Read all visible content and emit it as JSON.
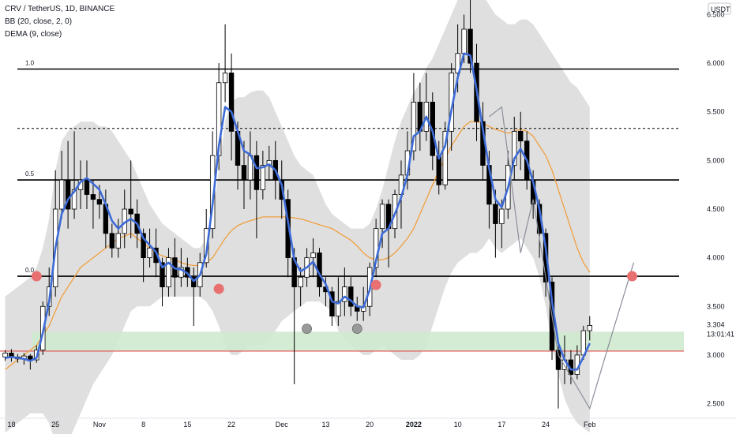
{
  "legend": {
    "symbol": "CRV / TetherUS, 1D, BINANCE",
    "bb": "BB (20, close, 2, 0)",
    "dema": "DEMA (9, close)"
  },
  "currency": "USDT",
  "last_price": "3.304",
  "countdown": "13:01:41",
  "colors": {
    "up_fill": "#ffffff",
    "down_fill": "#000000",
    "candle_stroke": "#000000",
    "dema": "#3d6bd6",
    "bb_basis": "#f0a040",
    "bb_band": "#d9d9d9",
    "support_zone": "#cfe9cf",
    "red_line": "#e05050",
    "marker_red": "#e87070",
    "marker_gray": "#999999"
  },
  "chart_data": {
    "type": "candlestick",
    "ylim": [
      2.35,
      6.65
    ],
    "y_ticks": [
      2.5,
      3.0,
      3.5,
      4.0,
      4.5,
      5.0,
      5.5,
      6.0,
      6.5
    ],
    "y_tick_labels": [
      "2.500",
      "3.000",
      "3.500",
      "4.000",
      "4.500",
      "5.000",
      "5.500",
      "6.000",
      "6.500"
    ],
    "x_ticks": [
      {
        "i": 1,
        "label": "18"
      },
      {
        "i": 8,
        "label": "25"
      },
      {
        "i": 15,
        "label": "Nov"
      },
      {
        "i": 22,
        "label": "8"
      },
      {
        "i": 29,
        "label": "15"
      },
      {
        "i": 36,
        "label": "22"
      },
      {
        "i": 44,
        "label": "Dec"
      },
      {
        "i": 51,
        "label": "13"
      },
      {
        "i": 58,
        "label": "20"
      },
      {
        "i": 65,
        "label": "2022"
      },
      {
        "i": 72,
        "label": "10"
      },
      {
        "i": 79,
        "label": "17"
      },
      {
        "i": 86,
        "label": "24"
      },
      {
        "i": 93,
        "label": "Feb"
      }
    ],
    "candles": [
      [
        2.98,
        3.02,
        2.94,
        3.05
      ],
      [
        3.02,
        2.98,
        2.93,
        3.06
      ],
      [
        2.98,
        2.96,
        2.92,
        3.01
      ],
      [
        2.96,
        2.99,
        2.9,
        3.02
      ],
      [
        2.99,
        2.95,
        2.85,
        3.01
      ],
      [
        2.95,
        3.05,
        2.92,
        3.1
      ],
      [
        3.05,
        3.5,
        3.0,
        3.55
      ],
      [
        3.5,
        3.7,
        3.4,
        3.9
      ],
      [
        3.7,
        4.5,
        3.6,
        4.9
      ],
      [
        4.5,
        4.8,
        4.4,
        5.1
      ],
      [
        4.8,
        4.5,
        4.3,
        5.2
      ],
      [
        4.5,
        4.7,
        4.4,
        5.3
      ],
      [
        4.7,
        4.8,
        4.5,
        5.0
      ],
      [
        4.8,
        4.65,
        4.5,
        5.0
      ],
      [
        4.65,
        4.6,
        4.3,
        4.8
      ],
      [
        4.6,
        4.55,
        4.4,
        4.75
      ],
      [
        4.55,
        4.25,
        4.1,
        4.7
      ],
      [
        4.25,
        4.1,
        4.0,
        4.35
      ],
      [
        4.1,
        4.25,
        4.0,
        4.4
      ],
      [
        4.25,
        4.5,
        4.1,
        4.7
      ],
      [
        4.5,
        4.45,
        4.2,
        5.0
      ],
      [
        4.45,
        4.25,
        4.1,
        4.6
      ],
      [
        4.25,
        4.0,
        3.75,
        4.3
      ],
      [
        4.0,
        4.1,
        3.9,
        4.3
      ],
      [
        4.1,
        3.95,
        3.8,
        4.3
      ],
      [
        3.95,
        3.7,
        3.5,
        4.0
      ],
      [
        3.7,
        4.0,
        3.6,
        4.1
      ],
      [
        4.0,
        3.8,
        3.6,
        4.2
      ],
      [
        3.8,
        3.9,
        3.7,
        4.1
      ],
      [
        3.9,
        3.8,
        3.7,
        4.0
      ],
      [
        3.8,
        3.7,
        3.3,
        3.9
      ],
      [
        3.7,
        3.95,
        3.6,
        4.05
      ],
      [
        3.95,
        4.3,
        3.9,
        4.5
      ],
      [
        4.3,
        5.05,
        4.2,
        5.3
      ],
      [
        5.05,
        5.8,
        4.9,
        6.0
      ],
      [
        5.8,
        5.9,
        5.6,
        6.4
      ],
      [
        5.9,
        5.3,
        5.0,
        6.1
      ],
      [
        5.3,
        4.95,
        4.7,
        5.4
      ],
      [
        4.95,
        4.8,
        4.5,
        5.2
      ],
      [
        4.8,
        5.05,
        4.6,
        5.3
      ],
      [
        5.05,
        4.7,
        4.2,
        5.2
      ],
      [
        4.7,
        4.95,
        4.6,
        5.1
      ],
      [
        4.95,
        5.0,
        4.8,
        5.15
      ],
      [
        5.0,
        4.8,
        4.6,
        5.2
      ],
      [
        4.8,
        4.6,
        4.4,
        5.0
      ],
      [
        4.6,
        4.0,
        3.8,
        4.7
      ],
      [
        4.0,
        3.7,
        2.7,
        4.1
      ],
      [
        3.7,
        3.8,
        3.5,
        3.9
      ],
      [
        3.8,
        4.0,
        3.7,
        4.1
      ],
      [
        4.0,
        4.05,
        3.8,
        4.2
      ],
      [
        4.05,
        3.7,
        3.6,
        4.1
      ],
      [
        3.7,
        3.65,
        3.5,
        3.8
      ],
      [
        3.65,
        3.4,
        3.3,
        3.7
      ],
      [
        3.4,
        3.55,
        3.3,
        3.8
      ],
      [
        3.55,
        3.7,
        3.4,
        3.9
      ],
      [
        3.7,
        3.5,
        3.4,
        3.8
      ],
      [
        3.5,
        3.45,
        3.35,
        3.6
      ],
      [
        3.45,
        3.5,
        3.35,
        3.7
      ],
      [
        3.5,
        3.9,
        3.4,
        3.95
      ],
      [
        3.9,
        4.3,
        3.8,
        4.4
      ],
      [
        4.3,
        4.55,
        4.1,
        4.6
      ],
      [
        4.55,
        4.3,
        3.9,
        4.6
      ],
      [
        4.3,
        4.65,
        4.2,
        4.7
      ],
      [
        4.65,
        4.85,
        4.3,
        5.0
      ],
      [
        4.85,
        5.1,
        4.7,
        5.3
      ],
      [
        5.1,
        5.6,
        5.0,
        5.9
      ],
      [
        5.6,
        5.3,
        5.1,
        5.8
      ],
      [
        5.3,
        5.6,
        5.2,
        5.9
      ],
      [
        5.6,
        5.05,
        4.9,
        5.7
      ],
      [
        5.05,
        4.75,
        4.65,
        5.2
      ],
      [
        4.75,
        5.3,
        4.7,
        5.4
      ],
      [
        5.3,
        5.9,
        5.1,
        6.0
      ],
      [
        5.9,
        6.1,
        5.7,
        6.4
      ],
      [
        6.1,
        6.35,
        6.0,
        6.5
      ],
      [
        6.35,
        6.0,
        5.9,
        6.65
      ],
      [
        6.0,
        5.4,
        5.2,
        6.2
      ],
      [
        5.4,
        4.95,
        4.8,
        5.6
      ],
      [
        4.95,
        4.55,
        4.3,
        5.1
      ],
      [
        4.55,
        4.35,
        4.0,
        4.7
      ],
      [
        4.35,
        4.5,
        4.1,
        4.6
      ],
      [
        4.5,
        4.95,
        4.4,
        5.1
      ],
      [
        4.95,
        5.3,
        4.8,
        5.45
      ],
      [
        5.3,
        5.2,
        4.9,
        5.5
      ],
      [
        5.2,
        4.8,
        4.7,
        5.3
      ],
      [
        4.8,
        4.55,
        4.4,
        4.9
      ],
      [
        4.55,
        4.25,
        4.0,
        4.6
      ],
      [
        4.25,
        3.75,
        3.6,
        4.3
      ],
      [
        3.75,
        3.05,
        2.95,
        3.8
      ],
      [
        3.05,
        2.85,
        2.45,
        3.1
      ],
      [
        2.85,
        2.95,
        2.7,
        3.2
      ],
      [
        2.95,
        2.8,
        2.7,
        3.05
      ],
      [
        2.8,
        3.0,
        2.75,
        3.1
      ],
      [
        3.0,
        3.25,
        2.95,
        3.3
      ],
      [
        3.25,
        3.304,
        3.15,
        3.4
      ]
    ],
    "dema": [
      2.97,
      2.98,
      2.97,
      2.96,
      2.94,
      2.97,
      3.23,
      3.55,
      4.1,
      4.45,
      4.6,
      4.68,
      4.78,
      4.82,
      4.76,
      4.7,
      4.55,
      4.38,
      4.3,
      4.36,
      4.4,
      4.35,
      4.2,
      4.13,
      4.06,
      3.9,
      3.95,
      3.89,
      3.88,
      3.84,
      3.76,
      3.82,
      4.04,
      4.55,
      5.15,
      5.55,
      5.5,
      5.3,
      5.1,
      5.06,
      4.92,
      4.93,
      4.96,
      4.9,
      4.75,
      4.37,
      3.98,
      3.86,
      3.9,
      3.96,
      3.83,
      3.73,
      3.55,
      3.53,
      3.6,
      3.56,
      3.5,
      3.49,
      3.67,
      3.97,
      4.25,
      4.3,
      4.45,
      4.62,
      4.85,
      5.25,
      5.3,
      5.45,
      5.3,
      5.02,
      5.15,
      5.52,
      5.85,
      6.1,
      6.08,
      5.73,
      5.32,
      4.92,
      4.6,
      4.52,
      4.72,
      5.02,
      5.12,
      5.0,
      4.78,
      4.5,
      4.1,
      3.55,
      3.12,
      2.95,
      2.85,
      2.85,
      2.98,
      3.12
    ],
    "bb_basis": [
      2.85,
      2.9,
      2.95,
      3.0,
      3.05,
      3.1,
      3.2,
      3.3,
      3.45,
      3.6,
      3.7,
      3.8,
      3.9,
      3.95,
      4.0,
      4.05,
      4.1,
      4.15,
      4.2,
      4.22,
      4.25,
      4.2,
      4.15,
      4.1,
      4.05,
      4.02,
      4.0,
      3.98,
      3.95,
      3.93,
      3.92,
      3.92,
      3.95,
      4.0,
      4.1,
      4.2,
      4.28,
      4.33,
      4.36,
      4.38,
      4.4,
      4.42,
      4.42,
      4.42,
      4.42,
      4.42,
      4.41,
      4.4,
      4.38,
      4.36,
      4.34,
      4.32,
      4.3,
      4.26,
      4.22,
      4.18,
      4.12,
      4.05,
      4.0,
      3.98,
      3.98,
      4.0,
      4.05,
      4.12,
      4.2,
      4.3,
      4.45,
      4.6,
      4.75,
      4.9,
      5.02,
      5.15,
      5.25,
      5.35,
      5.4,
      5.4,
      5.38,
      5.35,
      5.32,
      5.3,
      5.28,
      5.3,
      5.32,
      5.3,
      5.25,
      5.15,
      5.05,
      4.9,
      4.7,
      4.5,
      4.3,
      4.1,
      3.95,
      3.85
    ],
    "bb_upper": [
      3.6,
      3.65,
      3.7,
      3.75,
      3.8,
      3.9,
      4.1,
      4.4,
      4.9,
      5.2,
      5.3,
      5.35,
      5.4,
      5.4,
      5.4,
      5.35,
      5.35,
      5.3,
      5.2,
      5.1,
      5.0,
      4.85,
      4.7,
      4.55,
      4.45,
      4.35,
      4.3,
      4.25,
      4.2,
      4.15,
      4.1,
      4.1,
      4.2,
      4.4,
      4.9,
      5.4,
      5.6,
      5.65,
      5.65,
      5.7,
      5.72,
      5.72,
      5.65,
      5.5,
      5.35,
      5.2,
      5.05,
      4.95,
      4.9,
      4.85,
      4.7,
      4.55,
      4.45,
      4.4,
      4.35,
      4.3,
      4.3,
      4.3,
      4.35,
      4.5,
      4.7,
      4.95,
      5.2,
      5.4,
      5.55,
      5.7,
      5.8,
      5.95,
      6.05,
      6.2,
      6.35,
      6.5,
      6.65,
      6.75,
      6.8,
      6.75,
      6.7,
      6.6,
      6.5,
      6.45,
      6.4,
      6.4,
      6.45,
      6.45,
      6.4,
      6.3,
      6.2,
      6.1,
      6.0,
      5.9,
      5.8,
      5.75,
      5.65,
      5.55
    ],
    "bb_lower": [
      2.2,
      2.25,
      2.3,
      2.35,
      2.4,
      2.4,
      2.4,
      2.3,
      2.1,
      2.0,
      2.1,
      2.25,
      2.4,
      2.55,
      2.7,
      2.8,
      2.9,
      3.0,
      3.15,
      3.3,
      3.45,
      3.5,
      3.5,
      3.5,
      3.55,
      3.6,
      3.6,
      3.6,
      3.6,
      3.6,
      3.6,
      3.6,
      3.55,
      3.45,
      3.3,
      3.1,
      3.0,
      3.0,
      3.05,
      3.1,
      3.1,
      3.1,
      3.15,
      3.25,
      3.35,
      3.4,
      3.45,
      3.5,
      3.55,
      3.55,
      3.55,
      3.5,
      3.45,
      3.25,
      3.15,
      3.1,
      3.05,
      3.0,
      3.0,
      3.05,
      3.1,
      3.05,
      3.0,
      2.95,
      2.95,
      2.95,
      3.0,
      3.1,
      3.3,
      3.5,
      3.7,
      3.85,
      3.95,
      4.0,
      4.05,
      4.05,
      4.1,
      4.2,
      4.1,
      4.05,
      4.1,
      4.15,
      4.2,
      4.1,
      4.0,
      3.8,
      3.5,
      3.1,
      2.8,
      2.55,
      2.4,
      2.3,
      2.25,
      2.2
    ],
    "fib_levels": [
      {
        "label": "1.0",
        "price": 5.94,
        "style": "solid"
      },
      {
        "label": "0.5",
        "price": 4.8,
        "style": "solid"
      },
      {
        "label": "0.0",
        "price": 3.81,
        "style": "solid"
      },
      {
        "label": "",
        "price": 5.33,
        "style": "dashed"
      }
    ],
    "support_zone": [
      3.04,
      3.24
    ],
    "red_line": 3.04,
    "red_markers": [
      {
        "i": 5,
        "price": 3.81
      },
      {
        "i": 34,
        "price": 3.68
      },
      {
        "i": 59,
        "price": 3.72
      },
      {
        "i": 100,
        "price": 3.81
      }
    ],
    "gray_markers": [
      {
        "i": 48,
        "price": 3.27
      },
      {
        "i": 56,
        "price": 3.27
      }
    ],
    "projection_path": [
      {
        "i": 77,
        "price": 5.45
      },
      {
        "i": 79,
        "price": 5.55
      },
      {
        "i": 82,
        "price": 4.05
      },
      {
        "i": 84,
        "price": 4.6
      },
      {
        "i": 88,
        "price": 3.0
      },
      {
        "i": 93,
        "price": 2.45
      },
      {
        "i": 96,
        "price": 3.1
      },
      {
        "i": 100,
        "price": 3.95
      }
    ]
  }
}
